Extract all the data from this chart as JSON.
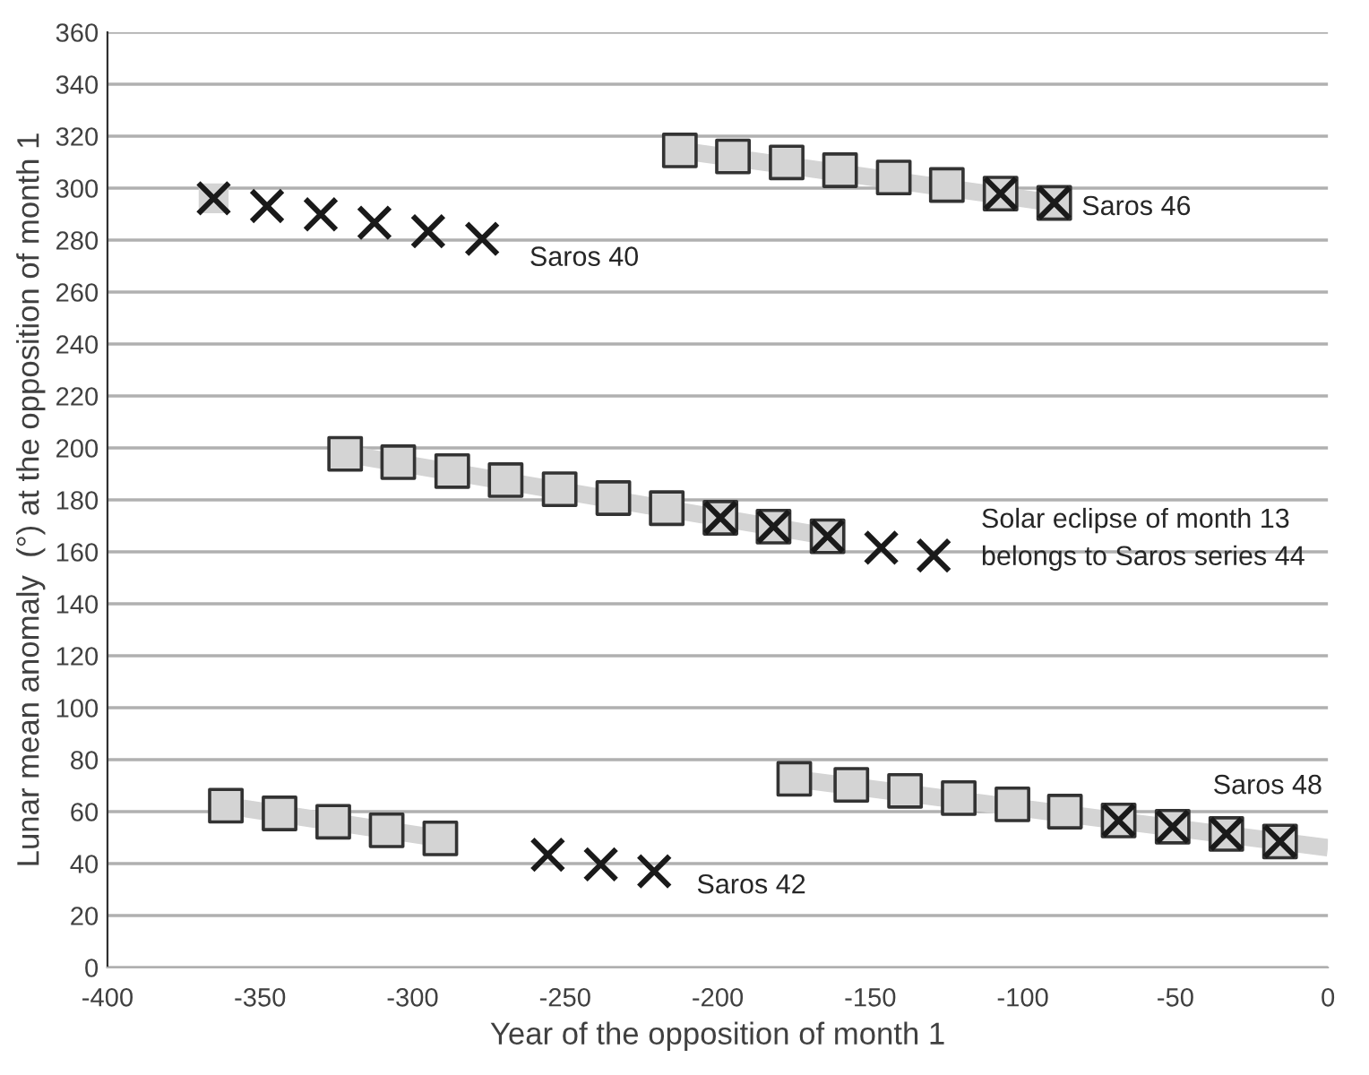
{
  "chart_data": {
    "type": "scatter",
    "xlabel": "Year of the opposition of month 1",
    "ylabel": "Lunar mean anomaly  (°) at the opposition of month 1",
    "xlim": [
      -400,
      0
    ],
    "xticks": [
      -400,
      -350,
      -300,
      -250,
      -200,
      -150,
      -100,
      -50,
      0
    ],
    "ylim": [
      0,
      360
    ],
    "yticks": [
      0,
      20,
      40,
      60,
      80,
      100,
      120,
      140,
      160,
      180,
      200,
      220,
      240,
      260,
      280,
      300,
      320,
      340,
      360
    ],
    "grid": "y",
    "legend": false,
    "series": [
      {
        "type": "line",
        "color": "#d4d4d4",
        "marker": "square",
        "x": [
          -365.2
        ],
        "values": [
          296.1
        ]
      },
      {
        "type": "line",
        "color": "#d4d4d4",
        "marker": "none",
        "x": [
          -212.4,
          -89.7
        ],
        "values": [
          314.5,
          294.3
        ]
      },
      {
        "type": "line",
        "color": "#d4d4d4",
        "marker": "none",
        "x": [
          -322.1,
          -164.0
        ],
        "values": [
          197.7,
          166.0
        ]
      },
      {
        "type": "line",
        "color": "#d4d4d4",
        "marker": "none",
        "x": [
          -361.2,
          -290.9
        ],
        "values": [
          62.3,
          49.7
        ]
      },
      {
        "type": "line",
        "color": "#d4d4d4",
        "marker": "none",
        "x": [
          -174.9,
          0
        ],
        "values": [
          72.6,
          46.1
        ]
      },
      {
        "color": "#d4d4d4",
        "marker": "square",
        "x": [
          -212.4,
          -195.0,
          -177.4,
          -159.9,
          -142.3,
          -124.9,
          -107.3,
          -89.7,
          -322.1,
          -304.7,
          -287.0,
          -269.5,
          -251.8,
          -234.2,
          -216.7,
          -199.1,
          -181.7,
          -164.0,
          -361.2,
          -343.6,
          -326.0,
          -308.5,
          -290.9,
          -174.9,
          -156.2,
          -138.6,
          -121.0,
          -103.4,
          -86.2,
          -68.6,
          -50.9,
          -33.3,
          -15.7
        ],
        "values": [
          314.5,
          312.2,
          309.9,
          306.9,
          304.1,
          301.2,
          297.9,
          294.3,
          197.7,
          194.5,
          191.1,
          187.6,
          184.1,
          180.7,
          176.8,
          173.1,
          169.7,
          166.0,
          62.3,
          59.3,
          56.1,
          52.8,
          49.7,
          72.6,
          70.3,
          68.0,
          65.2,
          62.8,
          60.0,
          56.6,
          54.2,
          51.4,
          48.5
        ]
      },
      {
        "color": "#1a1a1a",
        "marker": "cross",
        "x": [
          -365.2,
          -347.7,
          -330.1,
          -312.5,
          -294.9,
          -277.2,
          -107.3,
          -89.7,
          -199.1,
          -181.7,
          -164.0,
          -146.4,
          -129.2,
          -255.7,
          -238.3,
          -220.8,
          -68.6,
          -50.9,
          -33.3,
          -15.7
        ],
        "values": [
          296.1,
          293.1,
          289.9,
          286.7,
          283.4,
          280.5,
          297.9,
          294.3,
          173.1,
          169.7,
          166.0,
          161.6,
          158.6,
          43.4,
          39.7,
          37.0,
          56.6,
          54.2,
          51.4,
          48.5
        ]
      }
    ],
    "annotations": [
      {
        "text": "Saros 40",
        "x": -277.2,
        "y": 280.5
      },
      {
        "text": "Saros 46",
        "x": -89.7,
        "y": 294.3
      },
      {
        "text": "Solar eclipse of month 13\nbelongs to Saros series 44",
        "x": -129.2,
        "y": 158.6
      },
      {
        "text": "Saros 42",
        "x": -220.8,
        "y": 37.0
      },
      {
        "text": "Saros 48",
        "x": -15.7,
        "y": 48.5
      }
    ]
  }
}
